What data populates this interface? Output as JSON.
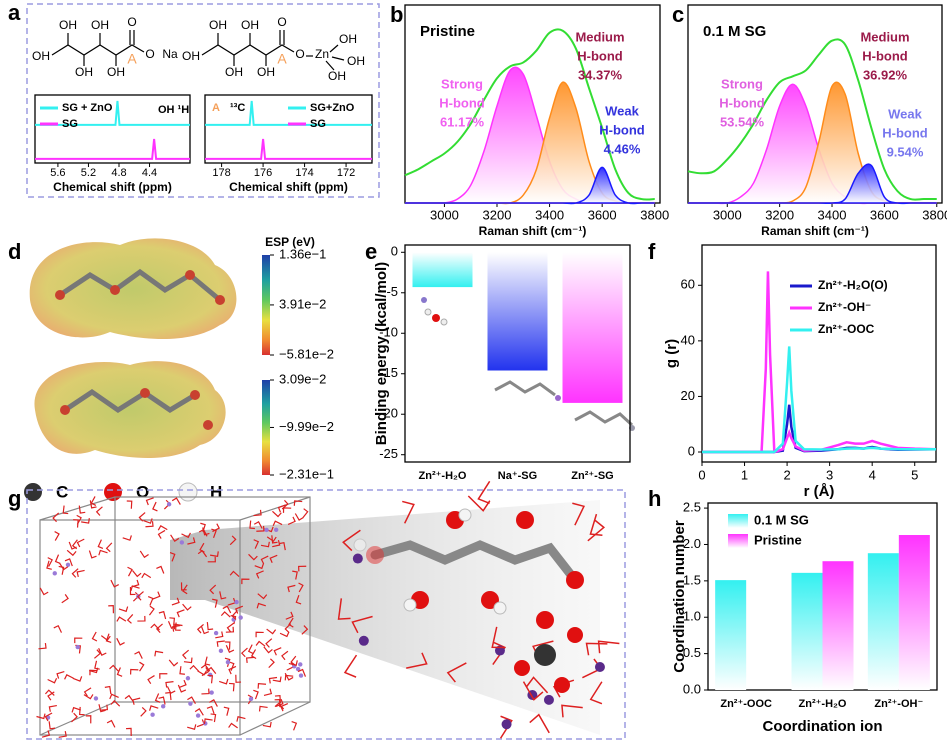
{
  "panel_labels": [
    "a",
    "b",
    "c",
    "d",
    "e",
    "f",
    "g",
    "h"
  ],
  "structures": [
    [
      "OH",
      "OH",
      "OH",
      "OH",
      "OH",
      "O",
      "O",
      "Na",
      "A"
    ],
    [
      "OH",
      "OH",
      "OH",
      "OH",
      "OH",
      "O",
      "O",
      "Zn",
      "OH",
      "OH",
      "OH",
      "A"
    ]
  ],
  "esp": {
    "title": "ESP (eV)",
    "colorbars": [
      {
        "lim": [
          -0.0581,
          0.136
        ],
        "ticks": [
          {
            "value": 0.136,
            "label": "1.36e−1"
          },
          {
            "value": 0.0391,
            "label": "3.91e−2"
          },
          {
            "value": -0.0581,
            "label": "−5.81e−2"
          }
        ]
      },
      {
        "lim": [
          -0.231,
          0.0309
        ],
        "ticks": [
          {
            "value": 0.0309,
            "label": "3.09e−2"
          },
          {
            "value": -0.0999,
            "label": "−9.99e−2"
          },
          {
            "value": -0.231,
            "label": "−2.31e−1"
          }
        ]
      }
    ]
  },
  "atom_legend": [
    "C",
    "O",
    "H"
  ],
  "chart_data": [
    {
      "type": "spectrum",
      "xlabel": "Chemical shift (ppm)",
      "xlim": [
        5.9,
        3.87
      ],
      "xticks": [
        5.6,
        5.2,
        4.8,
        4.4
      ],
      "annotations": [
        {
          "text": "OH ¹H",
          "color": "#000000"
        }
      ],
      "series": [
        {
          "name": "SG + ZnO",
          "color": "#33f0f0",
          "peak": 4.82
        },
        {
          "name": "SG",
          "color": "#ff33ff",
          "peak": 4.34
        }
      ]
    },
    {
      "type": "spectrum",
      "xlabel": "Chemical shift (ppm)",
      "xlim": [
        178.8,
        170.75
      ],
      "xticks": [
        178,
        176,
        174,
        172
      ],
      "annotations": [
        {
          "text": "A",
          "color": "#f5a05a"
        },
        {
          "text": "¹³C",
          "color": "#000000"
        }
      ],
      "series": [
        {
          "name": "SG+ZnO",
          "color": "#33f0f0",
          "peak": 176.55
        },
        {
          "name": "SG",
          "color": "#ff33ff",
          "peak": 176.0
        }
      ]
    },
    {
      "type": "raman",
      "title": "Pristine",
      "xlabel": "Raman shift (cm⁻¹)",
      "xlim": [
        2850,
        3820
      ],
      "xticks": [
        3000,
        3200,
        3400,
        3600,
        3800
      ],
      "ylim": [
        0,
        1
      ],
      "x": [
        2850,
        2900,
        2950,
        3000,
        3050,
        3100,
        3150,
        3200,
        3250,
        3300,
        3350,
        3400,
        3450,
        3500,
        3550,
        3600,
        3650,
        3700,
        3750,
        3800
      ],
      "series": [
        {
          "color": "#ff33ff",
          "area": true,
          "values": [
            0,
            0,
            0,
            0,
            0.02,
            0.09,
            0.26,
            0.49,
            0.67,
            0.65,
            0.44,
            0.21,
            0.07,
            0.02,
            0,
            0,
            0,
            0,
            0,
            0
          ]
        },
        {
          "color": "#ff8c1a",
          "area": true,
          "values": [
            0,
            0,
            0,
            0,
            0,
            0,
            0,
            0,
            0,
            0.04,
            0.17,
            0.43,
            0.61,
            0.48,
            0.21,
            0.05,
            0.01,
            0,
            0,
            0
          ]
        },
        {
          "color": "#1a1aff",
          "area": true,
          "values": [
            0,
            0,
            0,
            0,
            0,
            0,
            0,
            0,
            0,
            0,
            0,
            0,
            0,
            0,
            0.04,
            0.18,
            0.04,
            0,
            0,
            0
          ]
        },
        {
          "color": "#33dd33",
          "values": [
            0.14,
            0.17,
            0.21,
            0.25,
            0.31,
            0.4,
            0.52,
            0.63,
            0.69,
            0.71,
            0.77,
            0.86,
            0.87,
            0.78,
            0.58,
            0.38,
            0.17,
            0.05,
            0.02,
            0.02
          ]
        }
      ],
      "annotations": [
        {
          "lines": [
            "Medium",
            "H-bond",
            "34.37%"
          ],
          "color": "#9b1b4a"
        },
        {
          "lines": [
            "Strong",
            "H-bond",
            "61.17%"
          ],
          "color": "#f060f0"
        },
        {
          "lines": [
            "Weak",
            "H-bond",
            "4.46%"
          ],
          "color": "#3333dd"
        }
      ]
    },
    {
      "type": "raman",
      "title": "0.1 M SG",
      "xlabel": "Raman shift (cm⁻¹)",
      "xlim": [
        2850,
        3820
      ],
      "xticks": [
        3000,
        3200,
        3400,
        3600,
        3800
      ],
      "ylim": [
        0,
        1
      ],
      "x": [
        2850,
        2900,
        2950,
        3000,
        3050,
        3100,
        3150,
        3200,
        3250,
        3300,
        3350,
        3400,
        3450,
        3500,
        3550,
        3600,
        3650,
        3700,
        3750,
        3800
      ],
      "series": [
        {
          "color": "#ff33ff",
          "area": true,
          "values": [
            0,
            0,
            0,
            0,
            0.03,
            0.1,
            0.27,
            0.49,
            0.6,
            0.49,
            0.27,
            0.1,
            0.03,
            0,
            0,
            0,
            0,
            0,
            0,
            0
          ]
        },
        {
          "color": "#ff8c1a",
          "area": true,
          "values": [
            0,
            0,
            0,
            0,
            0,
            0,
            0,
            0,
            0.01,
            0.08,
            0.31,
            0.59,
            0.55,
            0.25,
            0.06,
            0.01,
            0,
            0,
            0,
            0
          ]
        },
        {
          "color": "#1a1aff",
          "area": true,
          "values": [
            0,
            0,
            0,
            0,
            0,
            0,
            0,
            0,
            0,
            0,
            0,
            0,
            0.02,
            0.15,
            0.19,
            0.03,
            0,
            0,
            0,
            0
          ]
        },
        {
          "color": "#33dd33",
          "values": [
            0.16,
            0.15,
            0.16,
            0.22,
            0.3,
            0.4,
            0.52,
            0.61,
            0.64,
            0.67,
            0.75,
            0.82,
            0.8,
            0.62,
            0.38,
            0.17,
            0.06,
            0.02,
            0.02,
            0.02
          ]
        }
      ],
      "annotations": [
        {
          "lines": [
            "Medium",
            "H-bond",
            "36.92%"
          ],
          "color": "#9b1b4a"
        },
        {
          "lines": [
            "Strong",
            "H-bond",
            "53.54%"
          ],
          "color": "#e060e0"
        },
        {
          "lines": [
            "Weak",
            "H-bond",
            "9.54%"
          ],
          "color": "#7777ee"
        }
      ]
    },
    {
      "type": "bar",
      "ylabel": "Binding energy (kcal/mol)",
      "categories": [
        "Zn²⁺-H₂O",
        "Na⁺-SG",
        "Zn²⁺-SG"
      ],
      "values": [
        -4.3,
        -14.6,
        -18.6
      ],
      "colors": [
        "#33f0f0",
        "#2233ee",
        "#ff33ff"
      ],
      "ylim": [
        -25.9,
        0.9
      ],
      "yticks": [
        0,
        -5,
        -10,
        -15,
        -20,
        -25
      ]
    },
    {
      "type": "line",
      "xlabel": "r (Å)",
      "ylabel": "g (r)",
      "xlim": [
        0,
        5.5
      ],
      "xticks": [
        0,
        1,
        2,
        3,
        4,
        5
      ],
      "ylim": [
        -3.6,
        74.5
      ],
      "yticks": [
        0,
        20,
        40,
        60
      ],
      "x": [
        0,
        1.4,
        1.5,
        1.55,
        1.6,
        1.7,
        1.9,
        2.0,
        2.05,
        2.1,
        2.2,
        2.4,
        2.8,
        3.2,
        3.4,
        3.6,
        3.8,
        3.9,
        4.0,
        4.2,
        4.6,
        5.0,
        5.5
      ],
      "series": [
        {
          "name": "Zn²⁺-H₂O(O)",
          "color": "#1a1acc",
          "values": [
            0,
            0,
            0,
            0,
            0,
            0,
            0.5,
            10,
            17,
            9,
            1.5,
            0.3,
            0.5,
            1,
            1.5,
            1.5,
            1.2,
            1.6,
            1.8,
            1.2,
            0.8,
            0.9,
            1
          ]
        },
        {
          "name": "Zn²⁺-OH⁻",
          "color": "#ff33ff",
          "values": [
            0,
            0,
            30,
            65,
            35,
            0,
            1,
            5,
            7,
            5,
            2,
            0.5,
            0.8,
            2.5,
            3.5,
            3,
            3,
            3.5,
            4,
            3,
            1.5,
            1.2,
            1
          ]
        },
        {
          "name": "Zn²⁺-OOC",
          "color": "#33f0f0",
          "values": [
            0,
            0,
            0,
            0,
            0,
            0,
            3,
            25,
            38,
            22,
            4,
            1,
            0.9,
            1,
            1.2,
            1.3,
            1.2,
            1.4,
            1.5,
            1.2,
            1,
            1,
            1
          ]
        }
      ]
    },
    {
      "type": "grouped-bar",
      "xlabel": "Coordination ion",
      "ylabel": "Coordination number",
      "categories": [
        "Zn²⁺-OOC",
        "Zn²⁺-H₂O",
        "Zn²⁺-OH⁻"
      ],
      "ylim": [
        0,
        2.57
      ],
      "yticks": [
        {
          "value": 0,
          "label": "0.0"
        },
        {
          "value": 0.5,
          "label": "0.5"
        },
        {
          "value": 1,
          "label": "1.0"
        },
        {
          "value": 1.5,
          "label": "1.5"
        },
        {
          "value": 2,
          "label": "2.0"
        },
        {
          "value": 2.5,
          "label": "2.5"
        }
      ],
      "series": [
        {
          "name": "0.1 M SG",
          "color": "#33f0f0",
          "values": [
            1.51,
            1.61,
            1.88
          ]
        },
        {
          "name": "Pristine",
          "color": "#ff33ff",
          "values": [
            null,
            1.77,
            2.13
          ]
        }
      ]
    }
  ]
}
